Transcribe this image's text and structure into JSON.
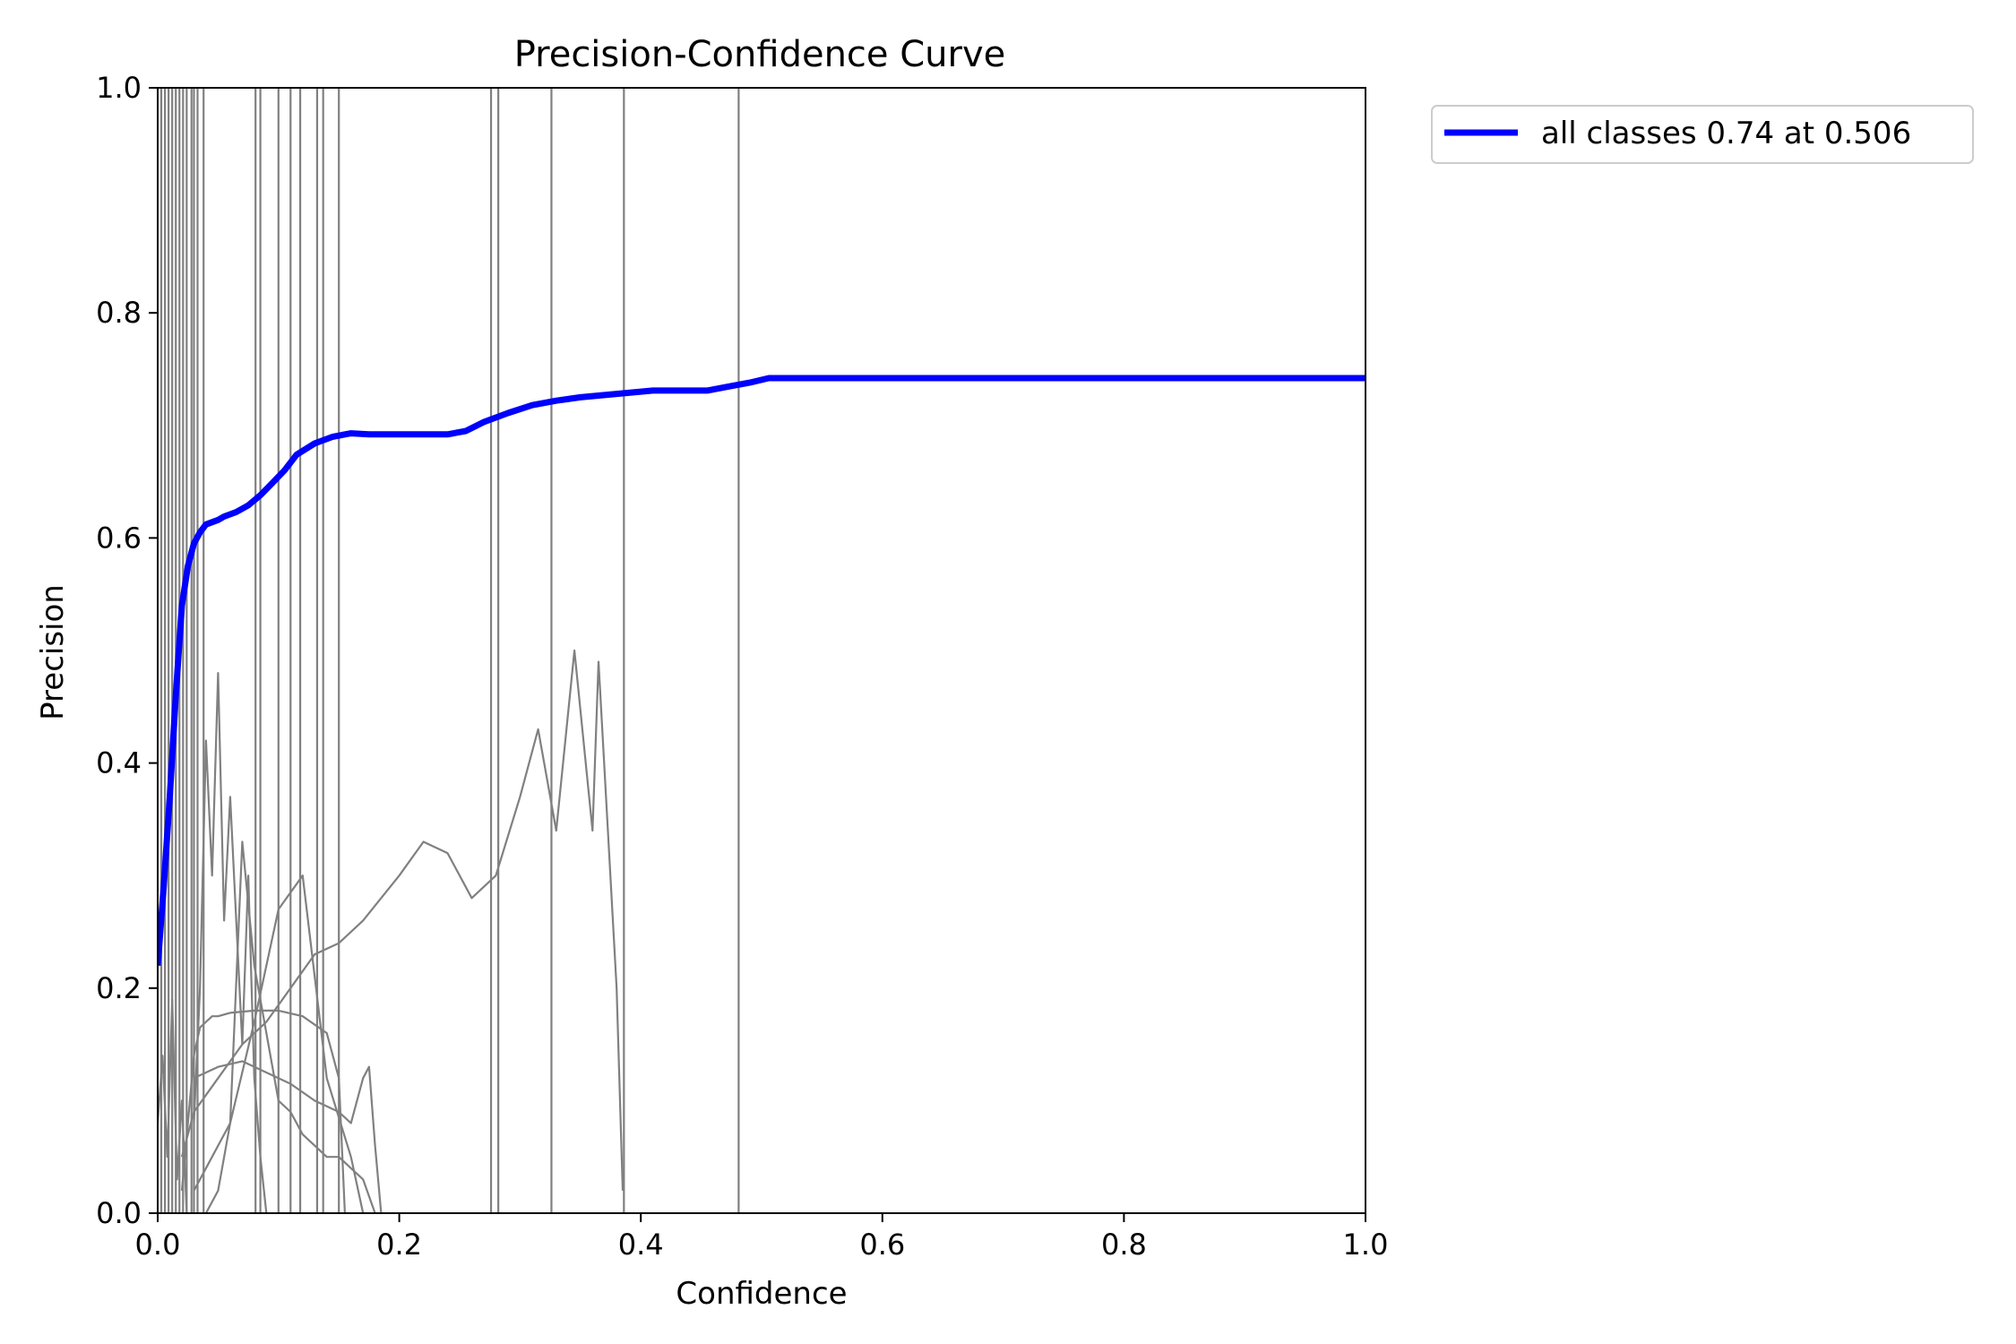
{
  "chart_data": {
    "type": "line",
    "title": "Precision-Confidence Curve",
    "xlabel": "Confidence",
    "ylabel": "Precision",
    "xlim": [
      0.0,
      1.0
    ],
    "ylim": [
      0.0,
      1.0
    ],
    "x_ticks": [
      "0.0",
      "0.2",
      "0.4",
      "0.6",
      "0.8",
      "1.0"
    ],
    "y_ticks": [
      "0.0",
      "0.2",
      "0.4",
      "0.6",
      "0.8",
      "1.0"
    ],
    "grid": false,
    "legend_position": "upper-right-outside",
    "colors": {
      "all_classes": "#0000ff",
      "per_class": "#808080"
    },
    "series": [
      {
        "name": "all classes 0.74 at 0.506",
        "color": "#0000ff",
        "x": [
          0.0,
          0.005,
          0.01,
          0.015,
          0.02,
          0.025,
          0.03,
          0.035,
          0.04,
          0.05,
          0.055,
          0.065,
          0.075,
          0.085,
          0.095,
          0.105,
          0.115,
          0.13,
          0.145,
          0.16,
          0.175,
          0.19,
          0.21,
          0.24,
          0.255,
          0.27,
          0.29,
          0.31,
          0.33,
          0.35,
          0.36,
          0.38,
          0.4,
          0.41,
          0.43,
          0.455,
          0.475,
          0.49,
          0.506,
          0.55,
          0.6,
          0.7,
          0.8,
          0.9,
          1.0
        ],
        "y": [
          0.22,
          0.29,
          0.37,
          0.46,
          0.54,
          0.575,
          0.595,
          0.605,
          0.612,
          0.616,
          0.619,
          0.623,
          0.629,
          0.638,
          0.649,
          0.66,
          0.674,
          0.684,
          0.69,
          0.693,
          0.692,
          0.692,
          0.692,
          0.692,
          0.695,
          0.703,
          0.711,
          0.718,
          0.722,
          0.725,
          0.726,
          0.728,
          0.73,
          0.731,
          0.731,
          0.731,
          0.735,
          0.738,
          0.742,
          0.742,
          0.742,
          0.742,
          0.742,
          0.742,
          0.742
        ]
      }
    ],
    "per_class_vertical_x": [
      0.003,
      0.006,
      0.009,
      0.012,
      0.015,
      0.018,
      0.021,
      0.024,
      0.028,
      0.03,
      0.033,
      0.038,
      0.081,
      0.085,
      0.1,
      0.11,
      0.118,
      0.132,
      0.137,
      0.15,
      0.276,
      0.282,
      0.326,
      0.386,
      0.481
    ],
    "per_class_curves": [
      {
        "x": [
          0.0,
          0.004,
          0.008,
          0.012,
          0.016,
          0.02,
          0.024
        ],
        "y": [
          0.08,
          0.14,
          0.05,
          0.19,
          0.03,
          0.1,
          0.0
        ]
      },
      {
        "x": [
          0.02,
          0.025,
          0.03,
          0.035,
          0.04,
          0.045,
          0.05,
          0.06,
          0.08,
          0.1,
          0.12,
          0.14,
          0.15,
          0.155
        ],
        "y": [
          0.02,
          0.08,
          0.14,
          0.165,
          0.17,
          0.175,
          0.175,
          0.178,
          0.18,
          0.18,
          0.175,
          0.16,
          0.12,
          0.0
        ]
      },
      {
        "x": [
          0.03,
          0.035,
          0.04,
          0.045,
          0.05,
          0.055,
          0.06,
          0.07,
          0.075,
          0.08,
          0.085,
          0.09
        ],
        "y": [
          0.08,
          0.2,
          0.42,
          0.3,
          0.48,
          0.26,
          0.37,
          0.15,
          0.3,
          0.12,
          0.05,
          0.0
        ]
      },
      {
        "x": [
          0.02,
          0.03,
          0.05,
          0.07,
          0.09,
          0.11,
          0.13,
          0.15,
          0.17,
          0.2,
          0.22,
          0.24,
          0.26,
          0.28,
          0.3,
          0.315,
          0.33,
          0.345,
          0.36,
          0.365,
          0.38,
          0.385
        ],
        "y": [
          0.05,
          0.09,
          0.12,
          0.15,
          0.17,
          0.2,
          0.23,
          0.24,
          0.26,
          0.3,
          0.33,
          0.32,
          0.28,
          0.3,
          0.37,
          0.43,
          0.34,
          0.5,
          0.34,
          0.49,
          0.2,
          0.02
        ]
      },
      {
        "x": [
          0.03,
          0.05,
          0.07,
          0.09,
          0.11,
          0.13,
          0.15,
          0.16,
          0.17,
          0.175,
          0.18,
          0.185
        ],
        "y": [
          0.12,
          0.13,
          0.135,
          0.125,
          0.115,
          0.1,
          0.09,
          0.08,
          0.12,
          0.13,
          0.06,
          0.0
        ]
      },
      {
        "x": [
          0.03,
          0.04,
          0.06,
          0.08,
          0.1,
          0.12,
          0.14,
          0.16,
          0.17
        ],
        "y": [
          0.02,
          0.04,
          0.08,
          0.17,
          0.27,
          0.3,
          0.12,
          0.05,
          0.0
        ]
      },
      {
        "x": [
          0.04,
          0.05,
          0.06,
          0.07,
          0.08,
          0.09,
          0.1,
          0.11,
          0.12,
          0.13,
          0.14,
          0.15,
          0.16,
          0.17,
          0.18
        ],
        "y": [
          0.0,
          0.02,
          0.08,
          0.33,
          0.22,
          0.16,
          0.1,
          0.09,
          0.07,
          0.06,
          0.05,
          0.05,
          0.04,
          0.03,
          0.0
        ]
      }
    ]
  }
}
